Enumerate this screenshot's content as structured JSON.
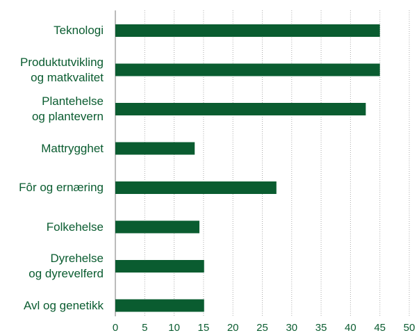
{
  "chart_data": {
    "type": "bar",
    "orientation": "horizontal",
    "categories": [
      "Teknologi",
      "Produktutvikling\nog matkvalitet",
      "Plantehelse\nog plantevern",
      "Mattrygghet",
      "Fôr og ernæring",
      "Folkehelse",
      "Dyrehelse\nog dyrevelferd",
      "Avl og genetikk"
    ],
    "values": [
      45,
      45,
      42.6,
      13.5,
      27.4,
      14.3,
      15.1,
      15.1
    ],
    "color": "#0a5c30",
    "xlim": [
      0,
      50
    ],
    "xticks": [
      0,
      5,
      10,
      15,
      20,
      25,
      30,
      35,
      40,
      45,
      50
    ],
    "grid": true
  }
}
